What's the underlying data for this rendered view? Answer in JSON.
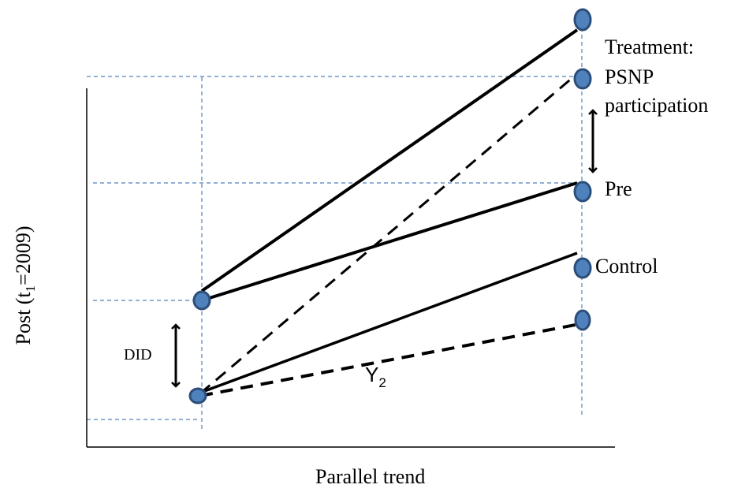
{
  "labels": {
    "treatment_line1": "Treatment:",
    "treatment_line2": "PSNP",
    "treatment_line3": "participation",
    "pre": "Pre",
    "control": "Control",
    "did": "DID",
    "y2_main": "Y",
    "y2_sub": "2"
  },
  "axes": {
    "y_label_prefix": "Post (t",
    "y_label_sub": "1",
    "y_label_suffix": "=2009)",
    "x_label": "Parallel trend"
  },
  "colors": {
    "guide": "#4f81bd",
    "point_fill": "#4f81bd",
    "point_stroke": "#2c4e7a",
    "line": "#000000"
  }
}
